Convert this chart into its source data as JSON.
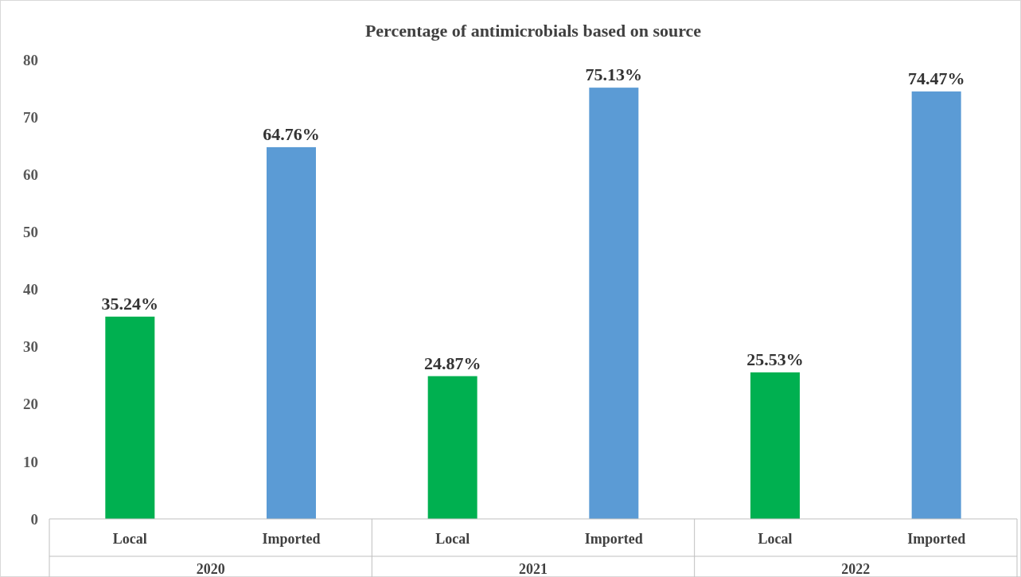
{
  "chart_data": {
    "type": "bar",
    "title": "Percentage of antimicrobials based on source",
    "categories": [
      "Local",
      "Imported",
      "Local",
      "Imported",
      "Local",
      "Imported"
    ],
    "values": [
      35.24,
      64.76,
      24.87,
      75.13,
      25.53,
      74.47
    ],
    "colors": [
      "#00b050",
      "#5b9bd5",
      "#00b050",
      "#5b9bd5",
      "#00b050",
      "#5b9bd5"
    ],
    "value_labels": [
      "35.24%",
      "64.76%",
      "24.87%",
      "75.13%",
      "25.53%",
      "74.47%"
    ],
    "annotations": [
      "2020",
      "2021",
      "2022"
    ],
    "ylim": [
      0,
      80
    ],
    "yticks": [
      0,
      10,
      20,
      30,
      40,
      50,
      60,
      70,
      80
    ],
    "grid": false
  }
}
